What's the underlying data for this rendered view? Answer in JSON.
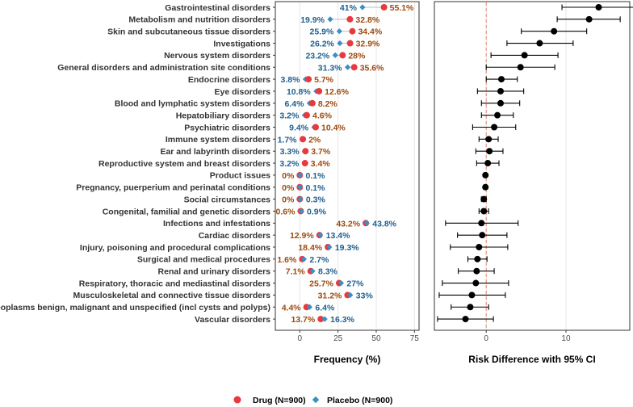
{
  "chart_data": [
    {
      "type": "dot",
      "title": "",
      "xlabel": "Frequency (%)",
      "ylabel": "",
      "xlim": [
        -16,
        78
      ],
      "xticks": [
        "0",
        "25",
        "50",
        "75"
      ],
      "grid": true,
      "categories": [
        "Gastrointestinal disorders",
        "Metabolism and nutrition disorders",
        "Skin and subcutaneous tissue disorders",
        "Investigations",
        "Nervous system disorders",
        "General disorders and administration site conditions",
        "Endocrine disorders",
        "Eye disorders",
        "Blood and lymphatic system disorders",
        "Hepatobiliary disorders",
        "Psychiatric disorders",
        "Immune system disorders",
        "Ear and labyrinth disorders",
        "Reproductive system and breast disorders",
        "Product issues",
        "Pregnancy, puerperium and perinatal conditions",
        "Social circumstances",
        "Congenital, familial and genetic disorders",
        "Infections and infestations",
        "Cardiac disorders",
        "Injury, poisoning and procedural complications",
        "Surgical and medical procedures",
        "Renal and urinary disorders",
        "Respiratory, thoracic and mediastinal disorders",
        "Musculoskeletal and connective tissue disorders",
        "Neoplasms benign, malignant and unspecified (incl cysts and polyps)",
        "Vascular disorders"
      ],
      "series": [
        {
          "name": "Drug (N=900)",
          "color": "#e8393f",
          "marker": "circle",
          "values": [
            55.1,
            32.8,
            34.4,
            32.9,
            28,
            35.6,
            5.7,
            12.6,
            8.2,
            4.6,
            10.4,
            2,
            3.7,
            3.4,
            0,
            0,
            0,
            0.6,
            43.2,
            12.9,
            18.4,
            1.6,
            7.1,
            25.7,
            31.2,
            4.4,
            13.7
          ],
          "labels": [
            "55.1%",
            "32.8%",
            "34.4%",
            "32.9%",
            "28%",
            "35.6%",
            "5.7%",
            "12.6%",
            "8.2%",
            "4.6%",
            "10.4%",
            "2%",
            "3.7%",
            "3.4%",
            "0%",
            "0%",
            "0%",
            "0.6%",
            "43.2%",
            "12.9%",
            "18.4%",
            "1.6%",
            "7.1%",
            "25.7%",
            "31.2%",
            "4.4%",
            "13.7%"
          ]
        },
        {
          "name": "Placebo (N=900)",
          "color": "#3a8fc4",
          "marker": "diamond",
          "values": [
            41,
            19.9,
            25.9,
            26.2,
            23.2,
            31.3,
            3.8,
            10.8,
            6.4,
            3.2,
            9.4,
            1.7,
            3.3,
            3.2,
            0.1,
            0.1,
            0.3,
            0.9,
            43.8,
            13.4,
            19.3,
            2.7,
            8.3,
            27,
            33,
            6.4,
            16.3
          ],
          "labels": [
            "41%",
            "19.9%",
            "25.9%",
            "26.2%",
            "23.2%",
            "31.3%",
            "3.8%",
            "10.8%",
            "6.4%",
            "3.2%",
            "9.4%",
            "1.7%",
            "3.3%",
            "3.2%",
            "0.1%",
            "0.1%",
            "0.3%",
            "0.9%",
            "43.8%",
            "13.4%",
            "19.3%",
            "2.7%",
            "8.3%",
            "27%",
            "33%",
            "6.4%",
            "16.3%"
          ]
        }
      ],
      "label_colors": {
        "drug": "#9c4a10",
        "placebo": "#1f5f8f"
      }
    },
    {
      "type": "forest",
      "title": "",
      "xlabel": "Risk Difference with 95% CI",
      "ylabel": "",
      "xlim": [
        -6.5,
        18
      ],
      "xticks": [
        "0",
        "10"
      ],
      "reference_line": 0,
      "reference_color": "#e8836c",
      "estimates": [
        14.1,
        12.9,
        8.5,
        6.7,
        4.8,
        4.3,
        1.9,
        1.8,
        1.8,
        1.4,
        1.0,
        0.3,
        0.4,
        0.2,
        -0.1,
        -0.1,
        -0.3,
        -0.3,
        -0.6,
        -0.5,
        -0.9,
        -1.1,
        -1.2,
        -1.3,
        -1.8,
        -2.0,
        -2.6
      ],
      "ci_lower": [
        9.5,
        8.9,
        4.4,
        2.6,
        0.6,
        0.0,
        0.0,
        -1.1,
        -0.6,
        -0.6,
        -1.7,
        -0.9,
        -1.3,
        -1.2,
        -0.2,
        -0.2,
        -0.6,
        -0.9,
        -5.1,
        -3.6,
        -4.5,
        -2.3,
        -3.5,
        -5.5,
        -5.9,
        -4.4,
        -6.1
      ],
      "ci_upper": [
        18.6,
        16.8,
        12.6,
        10.9,
        9.0,
        8.6,
        3.9,
        4.7,
        4.2,
        3.4,
        3.7,
        1.5,
        2.1,
        1.6,
        0.0,
        0.0,
        0.0,
        0.3,
        4.0,
        2.6,
        2.7,
        0.1,
        1.0,
        2.8,
        2.4,
        0.3,
        0.9
      ]
    }
  ],
  "legend": {
    "drug_label": "Drug (N=900)",
    "placebo_label": "Placebo (N=900)",
    "drug_color": "#e8393f",
    "placebo_color": "#3a8fc4"
  }
}
